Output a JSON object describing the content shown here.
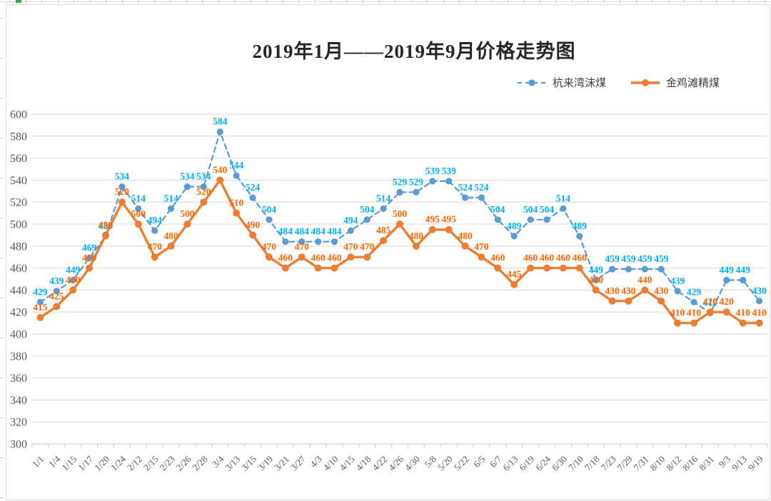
{
  "title": "2019年1月——2019年9月价格走势图",
  "legend": [
    {
      "label": "杭来湾沫煤",
      "color": "#5B9BD5",
      "style": "dashed"
    },
    {
      "label": "金鸡滩精煤",
      "color": "#ED7D31",
      "style": "solid"
    }
  ],
  "colors": {
    "blue_line": "#5B9BD5",
    "blue_label": "#00B0F0",
    "orange_line": "#ED7D31",
    "orange_label": "#FF6600",
    "gridline": "#D9D9D9",
    "axis": "#C6C6C6",
    "tick_text": "#595959",
    "title_text": "#262626",
    "green_ruler_mark": "#34A853"
  },
  "chart_data": {
    "type": "line",
    "title": "2019年1月——2019年9月价格走势图",
    "xlabel": "",
    "ylabel": "",
    "ylim": [
      300,
      600
    ],
    "ytick_step": 20,
    "grid": "horizontal",
    "legend_position": "top-right",
    "data_labels": true,
    "categories": [
      "1/1",
      "1/4",
      "1/15",
      "1/17",
      "1/20",
      "1/24",
      "2/12",
      "2/15",
      "2/23",
      "2/26",
      "2/28",
      "3/4",
      "3/13",
      "3/15",
      "3/19",
      "3/21",
      "3/27",
      "4/3",
      "4/10",
      "4/15",
      "4/18",
      "4/22",
      "4/26",
      "4/30",
      "5/8",
      "5/20",
      "5/22",
      "6/5",
      "6/7",
      "6/13",
      "6/19",
      "6/24",
      "6/30",
      "7/10",
      "7/18",
      "7/23",
      "7/29",
      "7/31",
      "8/10",
      "8/12",
      "8/16",
      "8/31",
      "9/3",
      "9/13",
      "9/19"
    ],
    "series": [
      {
        "name": "杭来湾沫煤",
        "line_color": "#5B9BD5",
        "label_color": "#00B0F0",
        "dash": "dashed",
        "values": [
          429,
          439,
          449,
          469,
          489,
          534,
          514,
          494,
          514,
          534,
          534,
          584,
          544,
          524,
          504,
          484,
          484,
          484,
          484,
          494,
          504,
          514,
          529,
          529,
          539,
          539,
          524,
          524,
          504,
          489,
          504,
          504,
          514,
          489,
          449,
          459,
          459,
          459,
          459,
          439,
          429,
          419,
          449,
          449,
          430
        ]
      },
      {
        "name": "金鸡滩精煤",
        "line_color": "#ED7D31",
        "label_color": "#FF6600",
        "dash": "solid",
        "values": [
          415,
          425,
          440,
          460,
          490,
          520,
          500,
          470,
          480,
          500,
          520,
          540,
          510,
          490,
          470,
          460,
          470,
          460,
          460,
          470,
          470,
          485,
          500,
          480,
          495,
          495,
          480,
          470,
          460,
          445,
          460,
          460,
          460,
          460,
          440,
          430,
          430,
          440,
          430,
          410,
          410,
          420,
          420,
          410,
          410
        ]
      }
    ]
  }
}
